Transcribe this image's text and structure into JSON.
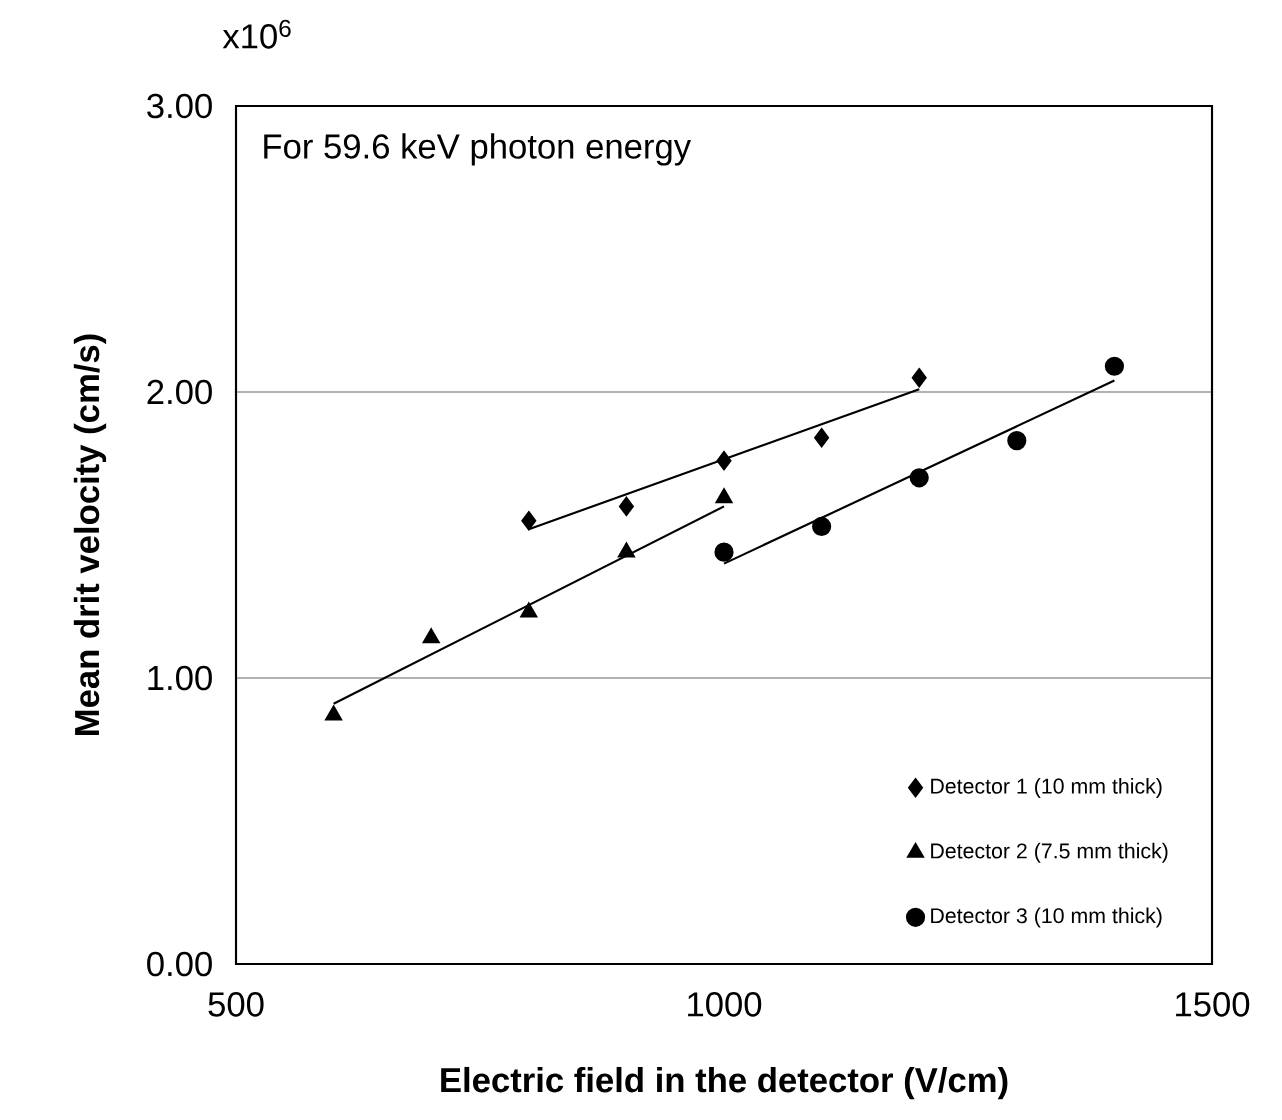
{
  "chart_data": {
    "type": "scatter",
    "xlabel": "Electric field in the detector (V/cm)",
    "ylabel": "Mean drit velocity (cm/s)",
    "annotations": [
      "For 59.6 keV photon energy",
      "x10$^{6}$"
    ],
    "xlim": [
      500,
      1500
    ],
    "xticks": [
      500,
      1000,
      1500
    ],
    "ylim": [
      0,
      3
    ],
    "yticks": [
      {
        "value": 0,
        "label": "0.00"
      },
      {
        "value": 1,
        "label": "1.00"
      },
      {
        "value": 2,
        "label": "2.00"
      },
      {
        "value": 3,
        "label": "3.00"
      }
    ],
    "grid": "y",
    "legend": "bottom right",
    "series": [
      {
        "name": "Detector 1 (10 mm thick)",
        "color": "#000000",
        "marker": "diamond",
        "x": [
          800,
          900,
          1000,
          1100,
          1200
        ],
        "values": [
          1.55,
          1.6,
          1.76,
          1.84,
          2.05
        ]
      },
      {
        "name": "Detector 2 (7.5 mm thick)",
        "color": "#000000",
        "marker": "triangle",
        "x": [
          600,
          700,
          800,
          900,
          1000
        ],
        "values": [
          0.87,
          1.14,
          1.23,
          1.44,
          1.63
        ]
      },
      {
        "name": "Detector 3 (10 mm thick)",
        "color": "#000000",
        "marker": "circle",
        "x": [
          1000,
          1100,
          1200,
          1300,
          1400
        ],
        "values": [
          1.44,
          1.53,
          1.7,
          1.83,
          2.09
        ]
      },
      {
        "type": "line",
        "color": "#000000",
        "marker": "none",
        "line_style": "solid",
        "x": [
          800,
          1200
        ],
        "values": [
          1.52,
          2.01
        ]
      },
      {
        "type": "line",
        "color": "#000000",
        "marker": "none",
        "line_style": "solid",
        "x": [
          600,
          1000
        ],
        "values": [
          0.91,
          1.6
        ]
      },
      {
        "type": "line",
        "color": "#000000",
        "marker": "none",
        "line_style": "solid",
        "x": [
          1000,
          1400
        ],
        "values": [
          1.4,
          2.04
        ]
      }
    ]
  }
}
